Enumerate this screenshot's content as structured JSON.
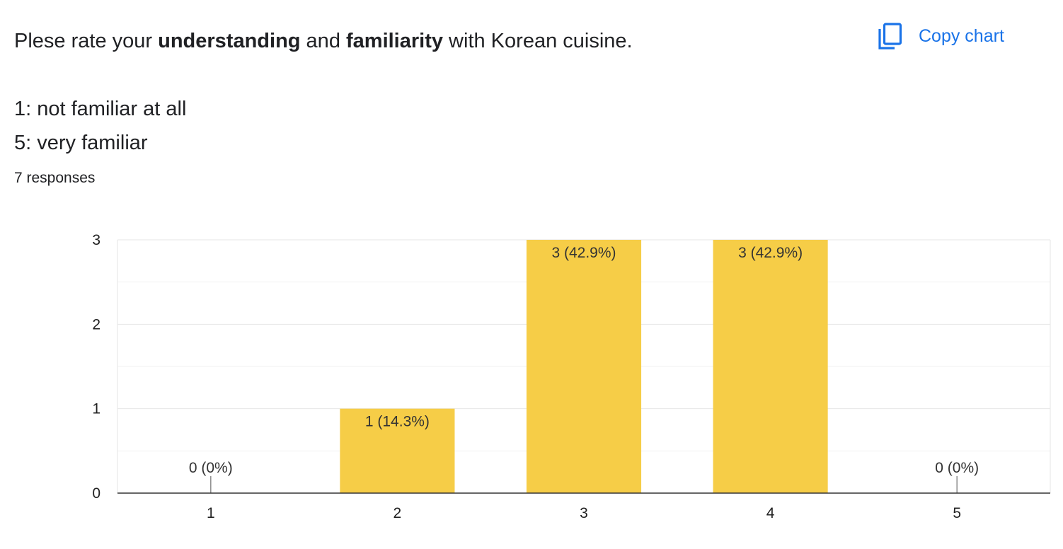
{
  "question": {
    "parts": [
      {
        "text": "Plese rate your ",
        "bold": false
      },
      {
        "text": "understanding",
        "bold": true
      },
      {
        "text": " and ",
        "bold": false
      },
      {
        "text": "familiarity",
        "bold": true
      },
      {
        "text": " with Korean cuisine.",
        "bold": false
      }
    ],
    "scale_low": "1: not familiar at all",
    "scale_high": "5: very familiar"
  },
  "responses_label": "7 responses",
  "copy_chart": {
    "label": "Copy chart",
    "icon": "copy-icon",
    "color": "#1a73e8"
  },
  "chart_data": {
    "type": "bar",
    "title": "",
    "xlabel": "",
    "ylabel": "",
    "categories": [
      "1",
      "2",
      "3",
      "4",
      "5"
    ],
    "values": [
      0,
      1,
      3,
      3,
      0
    ],
    "data_labels": [
      "0 (0%)",
      "1 (14.3%)",
      "3 (42.9%)",
      "3 (42.9%)",
      "0 (0%)"
    ],
    "ylim": [
      0,
      3
    ],
    "yticks": [
      "0",
      "1",
      "2",
      "3"
    ],
    "grid": true,
    "bar_color": "#f6cd47"
  }
}
